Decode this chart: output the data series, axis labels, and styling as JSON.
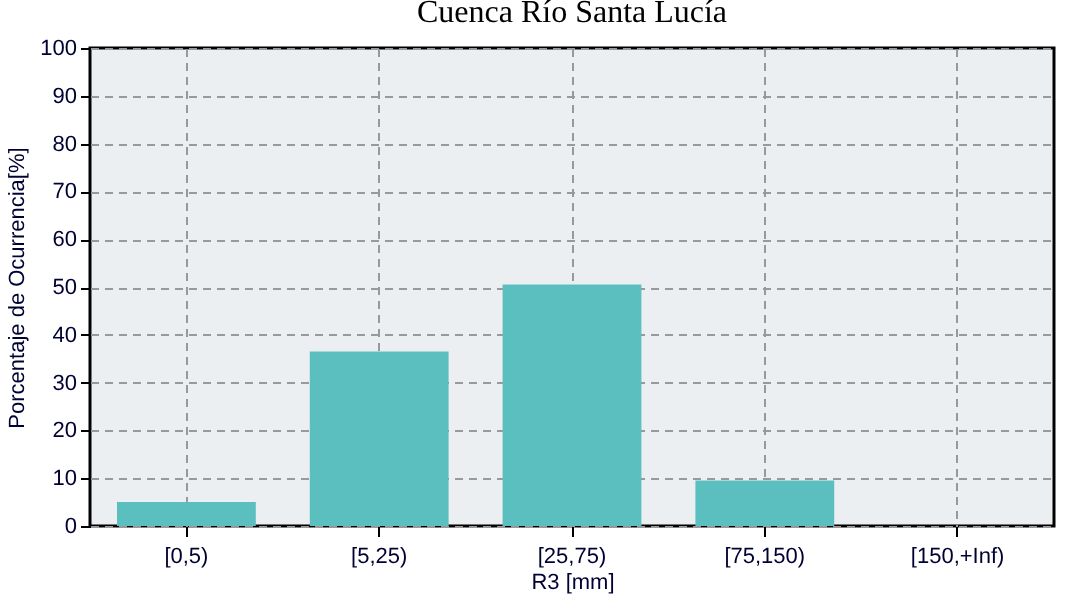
{
  "chart_data": {
    "type": "bar",
    "title": "Cuenca Río Santa Lucía",
    "xlabel": "R3 [mm]",
    "ylabel": "Porcentaje de Ocurrencia[%]",
    "categories": [
      "[0,5)",
      "[5,25)",
      "[25,75)",
      "[75,150)",
      "[150,+Inf)"
    ],
    "values": [
      5,
      36.5,
      50.5,
      9.5,
      0
    ],
    "color": "#5bbfbf",
    "ylim": [
      0,
      100
    ],
    "yticks": [
      0,
      10,
      20,
      30,
      40,
      50,
      60,
      70,
      80,
      90,
      100
    ],
    "grid": true
  }
}
